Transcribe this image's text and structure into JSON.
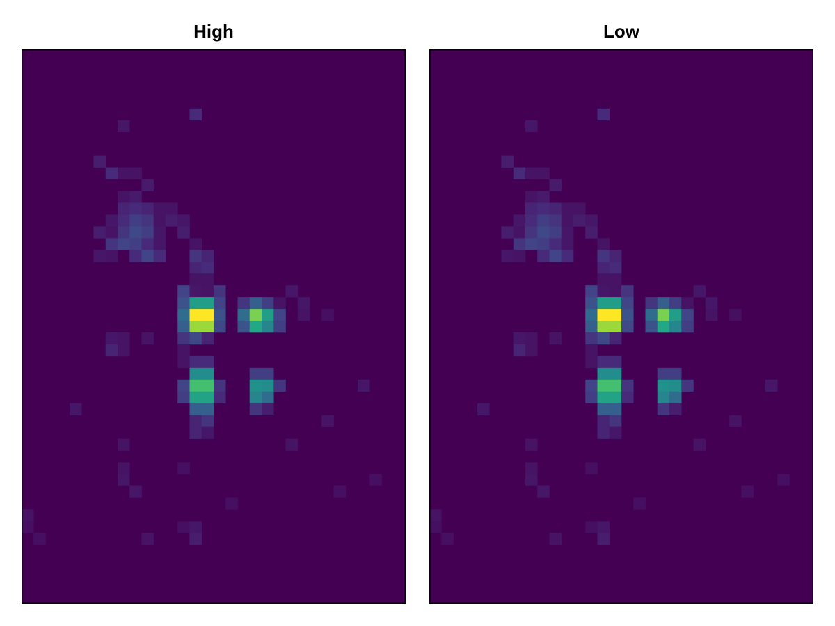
{
  "chart_data": [
    {
      "type": "heatmap",
      "title": "High",
      "xlabel": "",
      "ylabel": "",
      "grid": false,
      "colormap": "viridis",
      "value_range": [
        0,
        1
      ],
      "n_cols": 32,
      "n_rows": 32,
      "background_value": 0.0,
      "cells": [
        [
          14,
          5,
          0.12
        ],
        [
          8,
          6,
          0.06
        ],
        [
          6,
          9,
          0.08
        ],
        [
          7,
          10,
          0.12
        ],
        [
          8,
          10,
          0.05
        ],
        [
          9,
          10,
          0.05
        ],
        [
          10,
          11,
          0.07
        ],
        [
          8,
          12,
          0.05
        ],
        [
          9,
          12,
          0.07
        ],
        [
          8,
          13,
          0.1
        ],
        [
          9,
          13,
          0.12
        ],
        [
          10,
          13,
          0.1
        ],
        [
          11,
          13,
          0.05
        ],
        [
          12,
          13,
          0.05
        ],
        [
          7,
          14,
          0.06
        ],
        [
          8,
          14,
          0.12
        ],
        [
          9,
          14,
          0.18
        ],
        [
          10,
          14,
          0.15
        ],
        [
          11,
          14,
          0.05
        ],
        [
          12,
          14,
          0.08
        ],
        [
          13,
          14,
          0.06
        ],
        [
          6,
          15,
          0.08
        ],
        [
          7,
          15,
          0.05
        ],
        [
          8,
          15,
          0.15
        ],
        [
          9,
          15,
          0.22
        ],
        [
          10,
          15,
          0.18
        ],
        [
          11,
          15,
          0.06
        ],
        [
          13,
          15,
          0.08
        ],
        [
          7,
          16,
          0.15
        ],
        [
          8,
          16,
          0.2
        ],
        [
          9,
          16,
          0.18
        ],
        [
          10,
          16,
          0.12
        ],
        [
          11,
          16,
          0.06
        ],
        [
          14,
          16,
          0.05
        ],
        [
          6,
          17,
          0.06
        ],
        [
          7,
          17,
          0.05
        ],
        [
          9,
          17,
          0.12
        ],
        [
          10,
          17,
          0.2
        ],
        [
          11,
          17,
          0.12
        ],
        [
          14,
          17,
          0.15
        ],
        [
          15,
          17,
          0.1
        ],
        [
          14,
          18,
          0.1
        ],
        [
          15,
          18,
          0.12
        ],
        [
          14,
          19,
          0.05
        ],
        [
          15,
          19,
          0.05
        ],
        [
          13,
          20,
          0.2
        ],
        [
          14,
          20,
          0.06
        ],
        [
          15,
          20,
          0.05
        ],
        [
          16,
          20,
          0.15
        ],
        [
          22,
          20,
          0.06
        ],
        [
          13,
          21,
          0.25
        ],
        [
          14,
          21,
          0.55
        ],
        [
          15,
          21,
          0.55
        ],
        [
          16,
          21,
          0.2
        ],
        [
          18,
          21,
          0.15
        ],
        [
          19,
          21,
          0.3
        ],
        [
          20,
          21,
          0.18
        ],
        [
          21,
          21,
          0.05
        ],
        [
          23,
          21,
          0.06
        ],
        [
          13,
          22,
          0.35
        ],
        [
          14,
          22,
          1.0
        ],
        [
          15,
          22,
          1.0
        ],
        [
          16,
          22,
          0.25
        ],
        [
          18,
          22,
          0.35
        ],
        [
          19,
          22,
          0.8
        ],
        [
          20,
          22,
          0.55
        ],
        [
          21,
          22,
          0.2
        ],
        [
          23,
          22,
          0.05
        ],
        [
          25,
          22,
          0.04
        ],
        [
          13,
          23,
          0.3
        ],
        [
          14,
          23,
          0.85
        ],
        [
          15,
          23,
          0.85
        ],
        [
          16,
          23,
          0.22
        ],
        [
          18,
          23,
          0.25
        ],
        [
          19,
          23,
          0.6
        ],
        [
          20,
          23,
          0.45
        ],
        [
          21,
          23,
          0.18
        ],
        [
          7,
          24,
          0.06
        ],
        [
          8,
          24,
          0.05
        ],
        [
          10,
          24,
          0.05
        ],
        [
          13,
          24,
          0.15
        ],
        [
          14,
          24,
          0.22
        ],
        [
          15,
          24,
          0.1
        ],
        [
          7,
          25,
          0.1
        ],
        [
          8,
          25,
          0.05
        ],
        [
          13,
          25,
          0.05
        ],
        [
          13,
          26,
          0.05
        ],
        [
          14,
          26,
          0.12
        ],
        [
          15,
          26,
          0.12
        ],
        [
          14,
          27,
          0.48
        ],
        [
          15,
          27,
          0.48
        ],
        [
          19,
          27,
          0.18
        ],
        [
          20,
          27,
          0.18
        ],
        [
          13,
          28,
          0.2
        ],
        [
          14,
          28,
          0.7
        ],
        [
          15,
          28,
          0.7
        ],
        [
          16,
          28,
          0.15
        ],
        [
          19,
          28,
          0.5
        ],
        [
          20,
          28,
          0.48
        ],
        [
          21,
          28,
          0.15
        ],
        [
          28,
          28,
          0.06
        ],
        [
          13,
          29,
          0.18
        ],
        [
          14,
          29,
          0.58
        ],
        [
          15,
          29,
          0.58
        ],
        [
          16,
          29,
          0.12
        ],
        [
          19,
          29,
          0.45
        ],
        [
          20,
          29,
          0.35
        ],
        [
          4,
          30,
          0.06
        ],
        [
          14,
          30,
          0.3
        ],
        [
          15,
          30,
          0.3
        ],
        [
          19,
          30,
          0.15
        ],
        [
          20,
          30,
          0.08
        ],
        [
          14,
          31,
          0.1
        ],
        [
          15,
          31,
          0.15
        ],
        [
          25,
          31,
          0.05
        ],
        [
          14,
          32,
          0.1
        ],
        [
          15,
          32,
          0.06
        ],
        [
          8,
          33,
          0.05
        ],
        [
          22,
          33,
          0.05
        ],
        [
          8,
          35,
          0.05
        ],
        [
          13,
          35,
          0.04
        ],
        [
          8,
          36,
          0.06
        ],
        [
          29,
          36,
          0.04
        ],
        [
          9,
          37,
          0.06
        ],
        [
          26,
          37,
          0.04
        ],
        [
          17,
          38,
          0.04
        ],
        [
          0,
          39,
          0.05
        ],
        [
          0,
          40,
          0.04
        ],
        [
          13,
          40,
          0.04
        ],
        [
          14,
          40,
          0.06
        ],
        [
          14,
          41,
          0.08
        ],
        [
          10,
          41,
          0.05
        ],
        [
          1,
          41,
          0.04
        ]
      ]
    },
    {
      "type": "heatmap",
      "title": "Low",
      "xlabel": "",
      "ylabel": "",
      "grid": false,
      "colormap": "viridis",
      "value_range": [
        0,
        1
      ],
      "n_cols": 32,
      "n_rows": 32,
      "background_value": 0.0,
      "cells": [
        [
          14,
          5,
          0.12
        ],
        [
          8,
          6,
          0.06
        ],
        [
          6,
          9,
          0.08
        ],
        [
          7,
          10,
          0.12
        ],
        [
          8,
          10,
          0.05
        ],
        [
          9,
          10,
          0.05
        ],
        [
          10,
          11,
          0.07
        ],
        [
          8,
          12,
          0.05
        ],
        [
          9,
          12,
          0.07
        ],
        [
          8,
          13,
          0.1
        ],
        [
          9,
          13,
          0.12
        ],
        [
          10,
          13,
          0.1
        ],
        [
          11,
          13,
          0.05
        ],
        [
          12,
          13,
          0.05
        ],
        [
          7,
          14,
          0.06
        ],
        [
          8,
          14,
          0.12
        ],
        [
          9,
          14,
          0.18
        ],
        [
          10,
          14,
          0.15
        ],
        [
          11,
          14,
          0.05
        ],
        [
          12,
          14,
          0.08
        ],
        [
          13,
          14,
          0.06
        ],
        [
          6,
          15,
          0.08
        ],
        [
          7,
          15,
          0.05
        ],
        [
          8,
          15,
          0.15
        ],
        [
          9,
          15,
          0.22
        ],
        [
          10,
          15,
          0.18
        ],
        [
          11,
          15,
          0.06
        ],
        [
          13,
          15,
          0.08
        ],
        [
          7,
          16,
          0.15
        ],
        [
          8,
          16,
          0.2
        ],
        [
          9,
          16,
          0.18
        ],
        [
          10,
          16,
          0.12
        ],
        [
          11,
          16,
          0.06
        ],
        [
          14,
          16,
          0.05
        ],
        [
          6,
          17,
          0.06
        ],
        [
          7,
          17,
          0.05
        ],
        [
          9,
          17,
          0.12
        ],
        [
          10,
          17,
          0.2
        ],
        [
          11,
          17,
          0.12
        ],
        [
          14,
          17,
          0.15
        ],
        [
          15,
          17,
          0.1
        ],
        [
          14,
          18,
          0.1
        ],
        [
          15,
          18,
          0.12
        ],
        [
          14,
          19,
          0.05
        ],
        [
          15,
          19,
          0.05
        ],
        [
          13,
          20,
          0.2
        ],
        [
          14,
          20,
          0.06
        ],
        [
          15,
          20,
          0.05
        ],
        [
          16,
          20,
          0.15
        ],
        [
          22,
          20,
          0.06
        ],
        [
          13,
          21,
          0.25
        ],
        [
          14,
          21,
          0.55
        ],
        [
          15,
          21,
          0.55
        ],
        [
          16,
          21,
          0.2
        ],
        [
          18,
          21,
          0.15
        ],
        [
          19,
          21,
          0.3
        ],
        [
          20,
          21,
          0.18
        ],
        [
          21,
          21,
          0.05
        ],
        [
          23,
          21,
          0.06
        ],
        [
          13,
          22,
          0.35
        ],
        [
          14,
          22,
          1.0
        ],
        [
          15,
          22,
          1.0
        ],
        [
          16,
          22,
          0.25
        ],
        [
          18,
          22,
          0.35
        ],
        [
          19,
          22,
          0.8
        ],
        [
          20,
          22,
          0.55
        ],
        [
          21,
          22,
          0.2
        ],
        [
          23,
          22,
          0.05
        ],
        [
          25,
          22,
          0.04
        ],
        [
          13,
          23,
          0.3
        ],
        [
          14,
          23,
          0.85
        ],
        [
          15,
          23,
          0.85
        ],
        [
          16,
          23,
          0.22
        ],
        [
          18,
          23,
          0.25
        ],
        [
          19,
          23,
          0.6
        ],
        [
          20,
          23,
          0.45
        ],
        [
          21,
          23,
          0.18
        ],
        [
          7,
          24,
          0.06
        ],
        [
          8,
          24,
          0.05
        ],
        [
          10,
          24,
          0.05
        ],
        [
          13,
          24,
          0.15
        ],
        [
          14,
          24,
          0.22
        ],
        [
          15,
          24,
          0.1
        ],
        [
          7,
          25,
          0.1
        ],
        [
          8,
          25,
          0.05
        ],
        [
          13,
          25,
          0.05
        ],
        [
          13,
          26,
          0.05
        ],
        [
          14,
          26,
          0.12
        ],
        [
          15,
          26,
          0.12
        ],
        [
          14,
          27,
          0.48
        ],
        [
          15,
          27,
          0.48
        ],
        [
          19,
          27,
          0.18
        ],
        [
          20,
          27,
          0.18
        ],
        [
          13,
          28,
          0.2
        ],
        [
          14,
          28,
          0.7
        ],
        [
          15,
          28,
          0.7
        ],
        [
          16,
          28,
          0.15
        ],
        [
          19,
          28,
          0.5
        ],
        [
          20,
          28,
          0.48
        ],
        [
          21,
          28,
          0.15
        ],
        [
          28,
          28,
          0.06
        ],
        [
          13,
          29,
          0.18
        ],
        [
          14,
          29,
          0.58
        ],
        [
          15,
          29,
          0.58
        ],
        [
          16,
          29,
          0.12
        ],
        [
          19,
          29,
          0.45
        ],
        [
          20,
          29,
          0.35
        ],
        [
          4,
          30,
          0.06
        ],
        [
          14,
          30,
          0.3
        ],
        [
          15,
          30,
          0.3
        ],
        [
          19,
          30,
          0.15
        ],
        [
          20,
          30,
          0.08
        ],
        [
          14,
          31,
          0.1
        ],
        [
          15,
          31,
          0.15
        ],
        [
          25,
          31,
          0.05
        ],
        [
          14,
          32,
          0.1
        ],
        [
          15,
          32,
          0.06
        ],
        [
          8,
          33,
          0.05
        ],
        [
          22,
          33,
          0.05
        ],
        [
          8,
          35,
          0.05
        ],
        [
          13,
          35,
          0.04
        ],
        [
          8,
          36,
          0.06
        ],
        [
          29,
          36,
          0.04
        ],
        [
          9,
          37,
          0.06
        ],
        [
          26,
          37,
          0.04
        ],
        [
          17,
          38,
          0.04
        ],
        [
          0,
          39,
          0.05
        ],
        [
          0,
          40,
          0.04
        ],
        [
          13,
          40,
          0.04
        ],
        [
          14,
          40,
          0.06
        ],
        [
          14,
          41,
          0.08
        ],
        [
          10,
          41,
          0.05
        ],
        [
          1,
          41,
          0.04
        ]
      ]
    }
  ]
}
